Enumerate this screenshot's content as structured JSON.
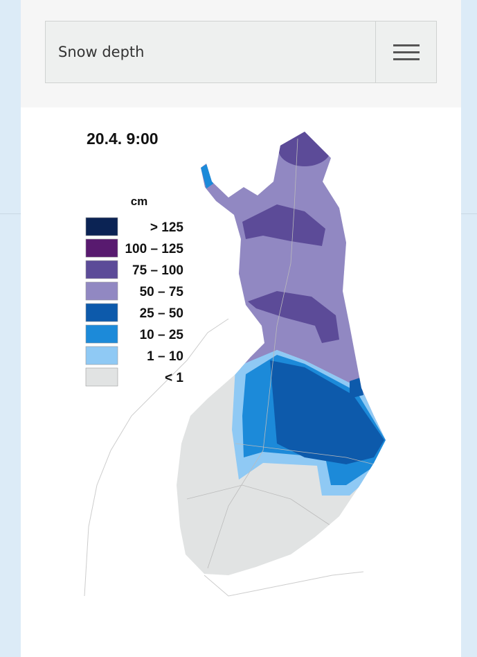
{
  "header": {
    "title": "Snow depth"
  },
  "map": {
    "timestamp": "20.4.  9:00",
    "legend": {
      "unit": "cm",
      "items": [
        {
          "label": "> 125",
          "color": "#0b2354"
        },
        {
          "label": "100 – 125",
          "color": "#581a6f"
        },
        {
          "label": "75 – 100",
          "color": "#5c4b98"
        },
        {
          "label": "50 – 75",
          "color": "#9188c2"
        },
        {
          "label": "25 – 50",
          "color": "#0d5aab"
        },
        {
          "label": "10 – 25",
          "color": "#1c8ad9"
        },
        {
          "label": "1 – 10",
          "color": "#8fc9f4"
        },
        {
          "label": "< 1",
          "color": "#e1e3e3"
        }
      ]
    }
  }
}
